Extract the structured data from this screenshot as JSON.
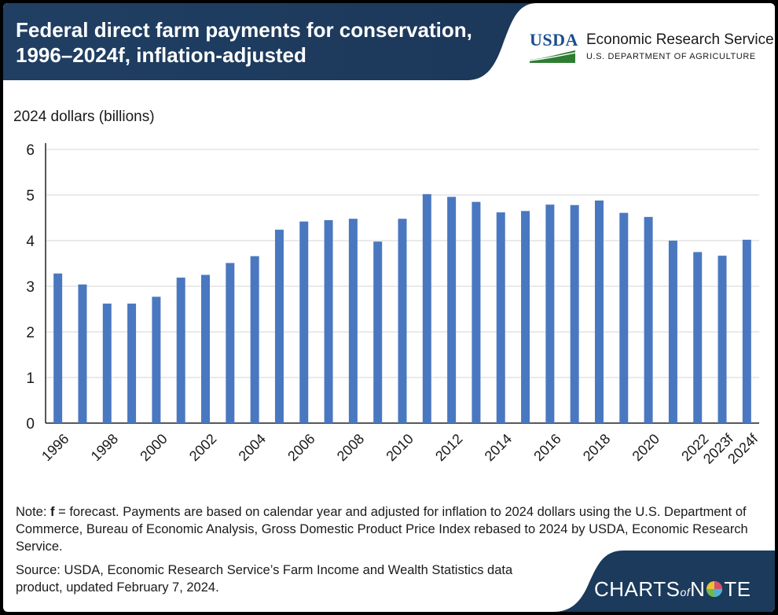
{
  "header": {
    "title_line1": "Federal direct farm payments for conservation,",
    "title_line2": "1996–2024f, inflation-adjusted"
  },
  "logo": {
    "usda": "USDA",
    "agency": "Economic Research Service",
    "department": "U.S. DEPARTMENT OF AGRICULTURE"
  },
  "chart_data": {
    "type": "bar",
    "title": "Federal direct farm payments for conservation, 1996–2024f, inflation-adjusted",
    "ylabel": "2024 dollars (billions)",
    "xlabel": "",
    "ylim": [
      0,
      6
    ],
    "yticks": [
      0,
      1,
      2,
      3,
      4,
      5,
      6
    ],
    "grid": true,
    "bar_color": "#4a78c0",
    "categories": [
      "1996",
      "1997",
      "1998",
      "1999",
      "2000",
      "2001",
      "2002",
      "2003",
      "2004",
      "2005",
      "2006",
      "2007",
      "2008",
      "2009",
      "2010",
      "2011",
      "2012",
      "2013",
      "2014",
      "2015",
      "2016",
      "2017",
      "2018",
      "2019",
      "2020",
      "2021",
      "2022",
      "2023f",
      "2024f"
    ],
    "tick_labels": [
      "1996",
      "",
      "1998",
      "",
      "2000",
      "",
      "2002",
      "",
      "2004",
      "",
      "2006",
      "",
      "2008",
      "",
      "2010",
      "",
      "2012",
      "",
      "2014",
      "",
      "2016",
      "",
      "2018",
      "",
      "2020",
      "",
      "2022",
      "2023f",
      "2024f"
    ],
    "values": [
      3.28,
      3.04,
      2.62,
      2.62,
      2.77,
      3.19,
      3.25,
      3.51,
      3.66,
      4.24,
      4.42,
      4.45,
      4.48,
      3.98,
      4.48,
      5.02,
      4.96,
      4.85,
      4.62,
      4.65,
      4.79,
      4.78,
      4.88,
      4.61,
      4.52,
      4.0,
      3.75,
      3.67,
      4.02
    ]
  },
  "note": {
    "prefix": "Note: ",
    "bold": "f",
    "text": " = forecast. Payments are based on calendar year and adjusted for inflation to 2024 dollars using the U.S. Department of Commerce, Bureau of Economic Analysis, Gross Domestic Product Price Index rebased to 2024 by USDA, Economic Research Service."
  },
  "source": "Source: USDA, Economic Research Service’s Farm Income and Wealth Statistics data product, updated February 7, 2024.",
  "footer": {
    "brand_a": "CHARTS",
    "brand_of": "of",
    "brand_b": "N",
    "brand_c": "TE"
  },
  "colors": {
    "navy": "#1b3a5c",
    "bar": "#4a78c0",
    "usda_blue": "#1d4d8c",
    "usda_green": "#2e7d32"
  }
}
